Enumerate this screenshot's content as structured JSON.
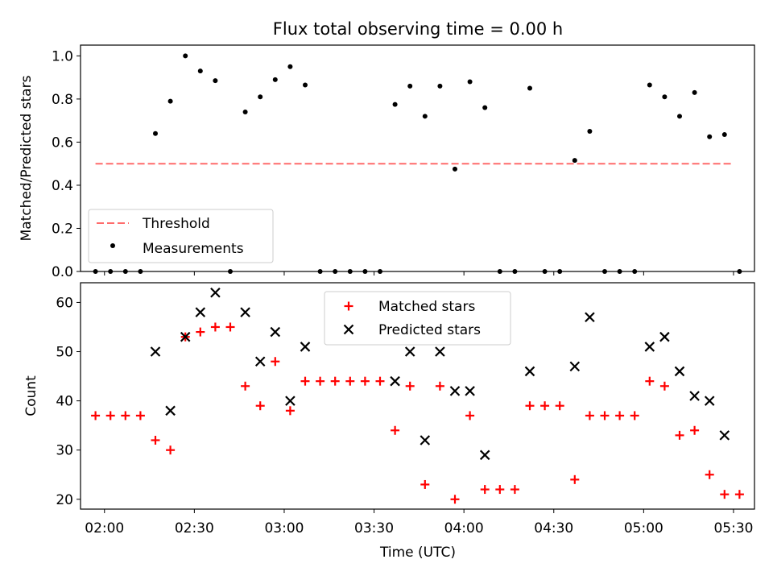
{
  "figure": {
    "title": "Flux total observing time = 0.00 h",
    "xlabel": "Time (UTC)"
  },
  "chart_data": [
    {
      "type": "scatter",
      "title": "Flux total observing time = 0.00 h",
      "ylabel": "Matched/Predicted stars",
      "ylim": [
        0,
        1.05
      ],
      "yticks": [
        0.0,
        0.2,
        0.4,
        0.6,
        0.8,
        1.0
      ],
      "ytick_labels": [
        "0.0",
        "0.2",
        "0.4",
        "0.6",
        "0.8",
        "1.0"
      ],
      "xlim": [
        "01:52",
        "05:37"
      ],
      "legend": "lower-left",
      "threshold": {
        "name": "Threshold",
        "value": 0.5,
        "x": [
          "01:57",
          "05:30"
        ],
        "color": "#ff6b6b",
        "style": "dashed"
      },
      "series": [
        {
          "name": "Measurements",
          "color": "#000000",
          "marker": "dot",
          "x": [
            "01:57",
            "02:02",
            "02:07",
            "02:12",
            "02:17",
            "02:22",
            "02:27",
            "02:32",
            "02:37",
            "02:42",
            "02:47",
            "02:52",
            "02:57",
            "03:02",
            "03:07",
            "03:12",
            "03:17",
            "03:22",
            "03:27",
            "03:32",
            "03:37",
            "03:42",
            "03:47",
            "03:52",
            "03:57",
            "04:02",
            "04:07",
            "04:12",
            "04:17",
            "04:22",
            "04:27",
            "04:32",
            "04:37",
            "04:42",
            "04:47",
            "04:52",
            "04:57",
            "05:02",
            "05:07",
            "05:12",
            "05:17",
            "05:22",
            "05:27",
            "05:32"
          ],
          "y": [
            0,
            0,
            0,
            0,
            0.64,
            0.79,
            1.0,
            0.93,
            0.885,
            0,
            0.74,
            0.81,
            0.89,
            0.95,
            0.865,
            0,
            0,
            0,
            0,
            0,
            0.775,
            0.86,
            0.72,
            0.86,
            0.475,
            0.88,
            0.76,
            0,
            0,
            0.85,
            0,
            0,
            0.515,
            0.65,
            0,
            0,
            0,
            0.865,
            0.81,
            0.72,
            0.83,
            0.625,
            0.635,
            0
          ]
        }
      ]
    },
    {
      "type": "scatter",
      "ylabel": "Count",
      "xlabel": "Time (UTC)",
      "ylim": [
        18,
        64
      ],
      "yticks": [
        20,
        30,
        40,
        50,
        60
      ],
      "ytick_labels": [
        "20",
        "30",
        "40",
        "50",
        "60"
      ],
      "xlim": [
        "01:52",
        "05:37"
      ],
      "xticks": [
        "02:00",
        "02:30",
        "03:00",
        "03:30",
        "04:00",
        "04:30",
        "05:00",
        "05:30"
      ],
      "legend": "upper-center",
      "series": [
        {
          "name": "Matched stars",
          "color": "#ff0000",
          "marker": "plus",
          "x": [
            "01:57",
            "02:02",
            "02:07",
            "02:12",
            "02:17",
            "02:22",
            "02:27",
            "02:32",
            "02:37",
            "02:42",
            "02:47",
            "02:52",
            "02:57",
            "03:02",
            "03:07",
            "03:12",
            "03:17",
            "03:22",
            "03:27",
            "03:32",
            "03:37",
            "03:42",
            "03:47",
            "03:52",
            "03:57",
            "04:02",
            "04:07",
            "04:12",
            "04:17",
            "04:22",
            "04:27",
            "04:32",
            "04:37",
            "04:42",
            "04:47",
            "04:52",
            "04:57",
            "05:02",
            "05:07",
            "05:12",
            "05:17",
            "05:22",
            "05:27",
            "05:32"
          ],
          "y": [
            37,
            37,
            37,
            37,
            32,
            30,
            53,
            54,
            55,
            55,
            43,
            39,
            48,
            38,
            44,
            44,
            44,
            44,
            44,
            44,
            34,
            43,
            23,
            43,
            20,
            37,
            22,
            22,
            22,
            39,
            39,
            39,
            24,
            37,
            37,
            37,
            37,
            44,
            43,
            33,
            34,
            25,
            21,
            21
          ]
        },
        {
          "name": "Predicted stars",
          "color": "#000000",
          "marker": "x",
          "x": [
            "02:17",
            "02:22",
            "02:27",
            "02:32",
            "02:37",
            "02:47",
            "02:52",
            "02:57",
            "03:02",
            "03:07",
            "03:37",
            "03:42",
            "03:47",
            "03:52",
            "03:57",
            "04:02",
            "04:07",
            "04:22",
            "04:37",
            "04:42",
            "05:02",
            "05:07",
            "05:12",
            "05:17",
            "05:22",
            "05:27"
          ],
          "y": [
            50,
            38,
            53,
            58,
            62,
            58,
            48,
            54,
            40,
            51,
            44,
            50,
            32,
            50,
            42,
            42,
            29,
            46,
            47,
            57,
            51,
            53,
            46,
            41,
            40,
            33
          ]
        }
      ]
    }
  ]
}
